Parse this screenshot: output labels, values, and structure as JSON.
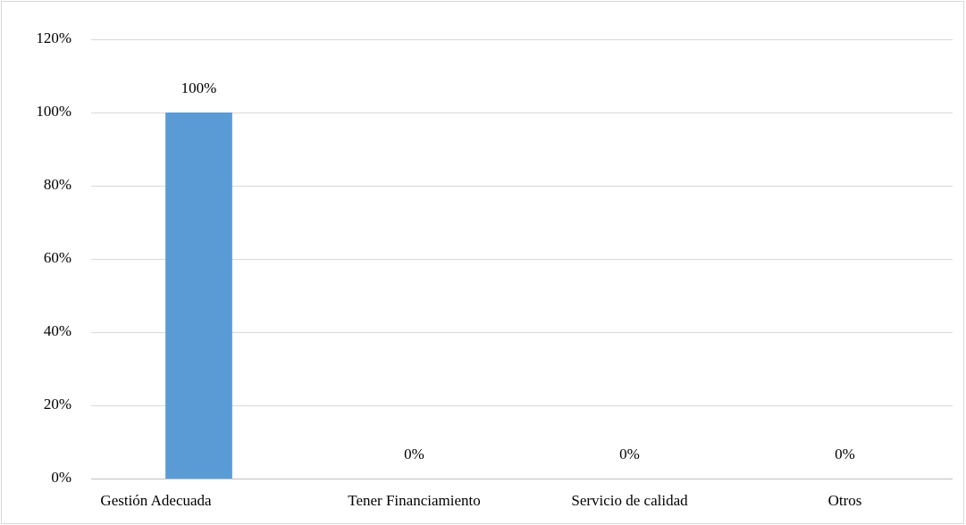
{
  "chart_data": {
    "type": "bar",
    "categories": [
      "Gestión Adecuada",
      "Tener Financiamiento",
      "Servicio de calidad",
      "Otros"
    ],
    "values": [
      100,
      0,
      0,
      0
    ],
    "value_labels": [
      "100%",
      "0%",
      "0%",
      "0%"
    ],
    "color": "#5b9bd5",
    "ylim": [
      0,
      120
    ],
    "yticks": [
      {
        "value": 0,
        "label": "0%"
      },
      {
        "value": 20,
        "label": "20%"
      },
      {
        "value": 40,
        "label": "40%"
      },
      {
        "value": 60,
        "label": "60%"
      },
      {
        "value": 80,
        "label": "80%"
      },
      {
        "value": 100,
        "label": "100%"
      },
      {
        "value": 120,
        "label": "120%"
      }
    ],
    "grid": true
  }
}
